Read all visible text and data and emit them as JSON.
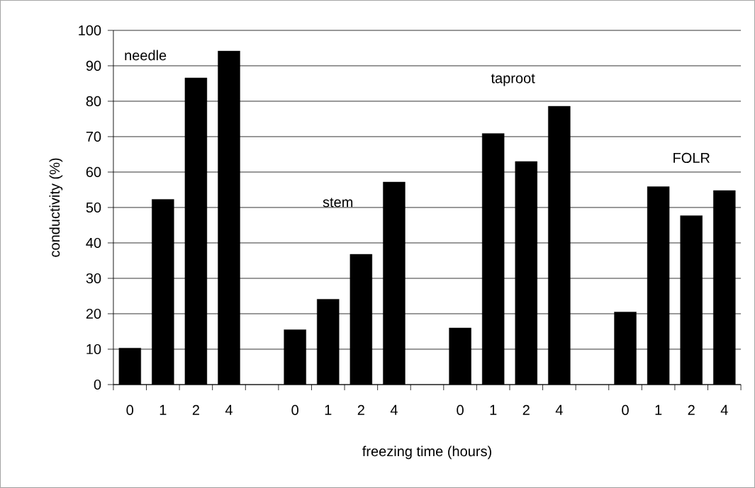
{
  "chart_data": {
    "type": "bar",
    "xlabel": "freezing time (hours)",
    "ylabel": "conductivity (%)",
    "categories": [
      "0",
      "1",
      "2",
      "4",
      null,
      "0",
      "1",
      "2",
      "4",
      null,
      "0",
      "1",
      "2",
      "4",
      null,
      "0",
      "1",
      "2",
      "4"
    ],
    "values": [
      10.3,
      52.3,
      86.6,
      94.2,
      null,
      15.5,
      24.1,
      36.8,
      57.2,
      null,
      16.0,
      70.9,
      63.0,
      78.6,
      null,
      20.5,
      55.9,
      47.7,
      54.8
    ],
    "color": "#000000",
    "ylim": [
      0,
      100
    ],
    "yticks": [
      0,
      10,
      20,
      30,
      40,
      50,
      60,
      70,
      80,
      90,
      100
    ],
    "grid": "y",
    "annotations": [
      "needle",
      "stem",
      "taproot",
      "FOLR"
    ]
  }
}
